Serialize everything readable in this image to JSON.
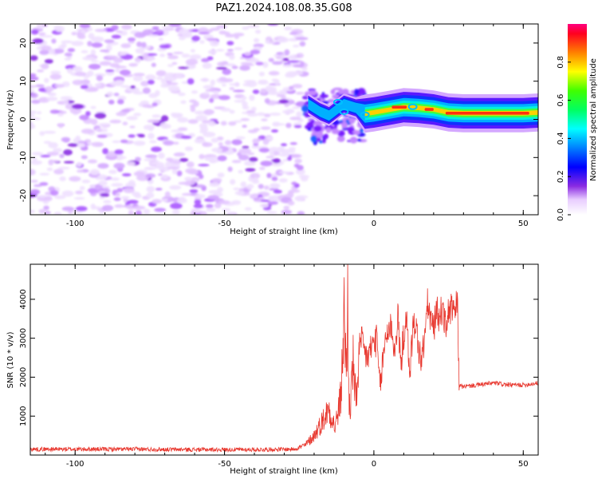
{
  "title": "PAZ1.2024.108.08.35.G08",
  "chart_data": [
    {
      "type": "heatmap",
      "title": "",
      "xlabel": "Height of straight line (km)",
      "ylabel": "Frequency (Hz)",
      "xlim": [
        -115,
        55
      ],
      "ylim": [
        -25,
        25
      ],
      "xticks": [
        -100,
        -50,
        0,
        50
      ],
      "yticks": [
        -20,
        -10,
        0,
        10,
        20
      ],
      "grid": false,
      "colorbar": {
        "label": "Normalized spectral amplitude",
        "range": [
          0,
          1
        ],
        "ticks": [
          0.0,
          0.2,
          0.4,
          0.6,
          0.8
        ]
      },
      "regions": [
        {
          "x_range": [
            -115,
            -23
          ],
          "description_level": 0.1
        },
        {
          "x_range": [
            -23,
            -5
          ],
          "description_level": 0.3
        },
        {
          "x_range": [
            -5,
            55
          ],
          "description_level": 0.8
        }
      ],
      "ridge": [
        {
          "x": -22,
          "y": 4
        },
        {
          "x": -18,
          "y": 2
        },
        {
          "x": -15,
          "y": 1
        },
        {
          "x": -10,
          "y": 4
        },
        {
          "x": -6,
          "y": 3
        },
        {
          "x": -3,
          "y": 1.5
        },
        {
          "x": 0,
          "y": 1.8
        },
        {
          "x": 5,
          "y": 2.5
        },
        {
          "x": 10,
          "y": 3.2
        },
        {
          "x": 15,
          "y": 3
        },
        {
          "x": 20,
          "y": 2.6
        },
        {
          "x": 25,
          "y": 1.8
        },
        {
          "x": 30,
          "y": 1.6
        },
        {
          "x": 40,
          "y": 1.6
        },
        {
          "x": 50,
          "y": 1.6
        },
        {
          "x": 55,
          "y": 1.8
        }
      ]
    },
    {
      "type": "line",
      "title": "",
      "xlabel": "Height of straight line (km)",
      "ylabel": "SNR (10 * v/v)",
      "xlim": [
        -115,
        55
      ],
      "ylim": [
        0,
        4900
      ],
      "xticks": [
        -100,
        -50,
        0,
        50
      ],
      "yticks": [
        1000,
        2000,
        3000,
        4000
      ],
      "grid": false,
      "series": [
        {
          "color": "#e8382f",
          "x": [
            -115,
            -100,
            -80,
            -60,
            -40,
            -27,
            -23,
            -20,
            -17,
            -15,
            -13,
            -11,
            -10,
            -9,
            -8.8,
            -8.5,
            -8,
            -7,
            -6,
            -5,
            -4,
            -3,
            -2,
            -1,
            0,
            1,
            2,
            4,
            6,
            7,
            8,
            9,
            10,
            11,
            12,
            13,
            14,
            15,
            16,
            17,
            18,
            19,
            20,
            21,
            22,
            23,
            24,
            25,
            26,
            27,
            28,
            28.5,
            29,
            29.5,
            35,
            40,
            45,
            50,
            55
          ],
          "y": [
            150,
            150,
            150,
            140,
            140,
            150,
            250,
            500,
            900,
            1200,
            700,
            1500,
            3600,
            2000,
            4900,
            1800,
            1100,
            2400,
            1300,
            2700,
            2900,
            2600,
            2500,
            2750,
            2900,
            2950,
            1700,
            3100,
            3350,
            2500,
            3600,
            2300,
            3100,
            3400,
            2100,
            3200,
            3450,
            2700,
            2400,
            3050,
            3900,
            3450,
            3250,
            3700,
            3550,
            3800,
            3250,
            3700,
            3750,
            3600,
            3950,
            1700,
            1850,
            1750,
            1800,
            1850,
            1800,
            1800,
            1850
          ]
        }
      ]
    }
  ]
}
